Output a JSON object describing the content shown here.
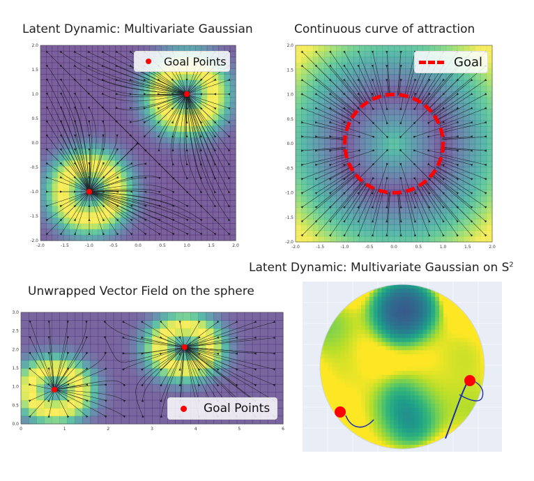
{
  "chart_data": [
    {
      "type": "heatmap",
      "subtype": "streamplot",
      "title": "Latent Dynamic: Multivariate Gaussian",
      "xlim": [
        -2.0,
        2.0
      ],
      "ylim": [
        -2.0,
        2.0
      ],
      "xticks": [
        "-2.0",
        "-1.5",
        "-1.0",
        "-0.5",
        "0.0",
        "0.5",
        "1.0",
        "1.5",
        "2.0"
      ],
      "yticks": [
        "2.0",
        "1.5",
        "1.0",
        "0.5",
        "0.0",
        "-0.5",
        "-1.0",
        "-1.5",
        "-2.0"
      ],
      "goal_points": [
        [
          1.0,
          1.0
        ],
        [
          -1.0,
          -1.0
        ]
      ],
      "legend": [
        "Goal Points"
      ],
      "legend_placement": "top-right",
      "colormap": "viridis",
      "grid": false
    },
    {
      "type": "heatmap",
      "subtype": "streamplot",
      "title": "Continuous curve of attraction",
      "xlim": [
        -2.0,
        2.0
      ],
      "ylim": [
        -2.0,
        2.0
      ],
      "xticks": [
        "-2.0",
        "-1.5",
        "-1.0",
        "-0.5",
        "0.0",
        "0.5",
        "1.0",
        "1.5",
        "2.0"
      ],
      "yticks": [
        "2.0",
        "1.5",
        "1.0",
        "0.5",
        "0.0",
        "-0.5",
        "-1.0",
        "-1.5",
        "-2.0"
      ],
      "goal_curve": {
        "shape": "circle",
        "center": [
          0.0,
          0.0
        ],
        "radius": 1.0
      },
      "legend": [
        "Goal"
      ],
      "legend_placement": "top-right",
      "colormap": "viridis",
      "grid": false
    },
    {
      "type": "heatmap",
      "subtype": "streamplot",
      "title": "Unwrapped Vector Field on the sphere",
      "xlim": [
        0,
        6.28
      ],
      "ylim": [
        0.0,
        3.2
      ],
      "xticks": [
        "0",
        "1",
        "2",
        "3",
        "4",
        "5",
        "6"
      ],
      "yticks": [
        "3.0",
        "2.5",
        "2.0",
        "1.5",
        "1.0",
        "0.5",
        "0.0"
      ],
      "goal_points": [
        [
          0.8,
          0.98
        ],
        [
          3.92,
          2.2
        ]
      ],
      "legend": [
        "Goal Points"
      ],
      "legend_placement": "bottom-right",
      "colormap": "viridis",
      "grid": true
    },
    {
      "type": "heatmap",
      "subtype": "sphere-3d",
      "title": "Latent Dynamic: Multivariate Gaussian on S",
      "title_superscript": "2",
      "colormap": "viridis",
      "goal_markers": 2,
      "trajectories": 2
    }
  ],
  "colors": {
    "goal": "#ff0000",
    "trajectory": "#1a2fb0",
    "stream": "#111111"
  }
}
